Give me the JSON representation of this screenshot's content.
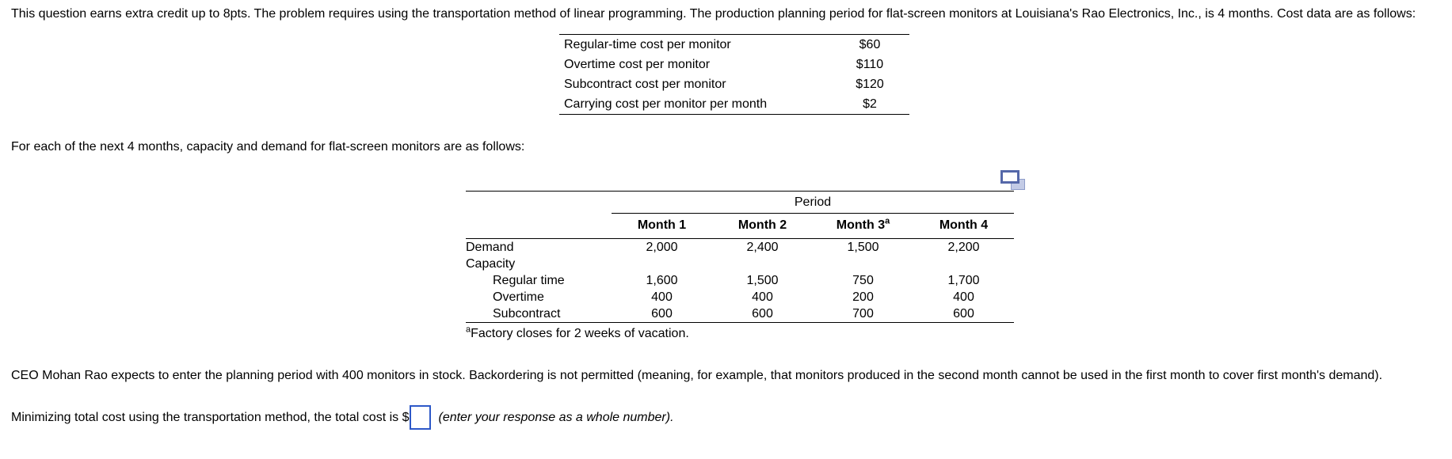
{
  "intro": "This question earns extra credit up to 8pts.  The problem requires using the transportation method of linear programming. The production planning period for flat-screen monitors at Louisiana's Rao Electronics, Inc., is 4 months. Cost data are as follows:",
  "cost_table": {
    "rows": [
      {
        "label": "Regular-time cost per monitor",
        "value": "$60"
      },
      {
        "label": "Overtime cost per monitor",
        "value": "$110"
      },
      {
        "label": "Subcontract cost per monitor",
        "value": "$120"
      },
      {
        "label": "Carrying cost per monitor per month",
        "value": "$2"
      }
    ]
  },
  "capacity_intro": "For each of the next 4 months, capacity and demand for flat-screen monitors are as follows:",
  "period_table": {
    "group_header": "Period",
    "columns": [
      "Month 1",
      "Month 2",
      "Month 3",
      "Month 4"
    ],
    "month3_superscript": "a",
    "rows": [
      {
        "label": "Demand",
        "indent": false,
        "values": [
          "2,000",
          "2,400",
          "1,500",
          "2,200"
        ]
      },
      {
        "label": "Capacity",
        "indent": false,
        "values": [
          "",
          "",
          "",
          ""
        ]
      },
      {
        "label": "Regular time",
        "indent": true,
        "values": [
          "1,600",
          "1,500",
          "750",
          "1,700"
        ]
      },
      {
        "label": "Overtime",
        "indent": true,
        "values": [
          "400",
          "400",
          "200",
          "400"
        ]
      },
      {
        "label": "Subcontract",
        "indent": true,
        "values": [
          "600",
          "600",
          "700",
          "600"
        ]
      }
    ],
    "footnote_marker": "a",
    "footnote_text": "Factory closes for 2 weeks of vacation."
  },
  "stock_paragraph": "CEO Mohan Rao expects to enter the planning period with 400 monitors in stock. Backordering is not permitted (meaning, for example, that monitors produced in the second month cannot be used in the first month to cover first month's demand).",
  "answer": {
    "prefix": "Minimizing total cost using the transportation method, the total cost is $",
    "input_value": "",
    "hint": "(enter your response as a whole number)."
  },
  "icons": {
    "popout": "popout-table-icon"
  },
  "colors": {
    "input_border": "#2d58c8",
    "icon_front_border": "#5568a9",
    "icon_back_fill": "#c3cbe6",
    "icon_back_border": "#8e9cc9",
    "table_rule": "#000000"
  }
}
